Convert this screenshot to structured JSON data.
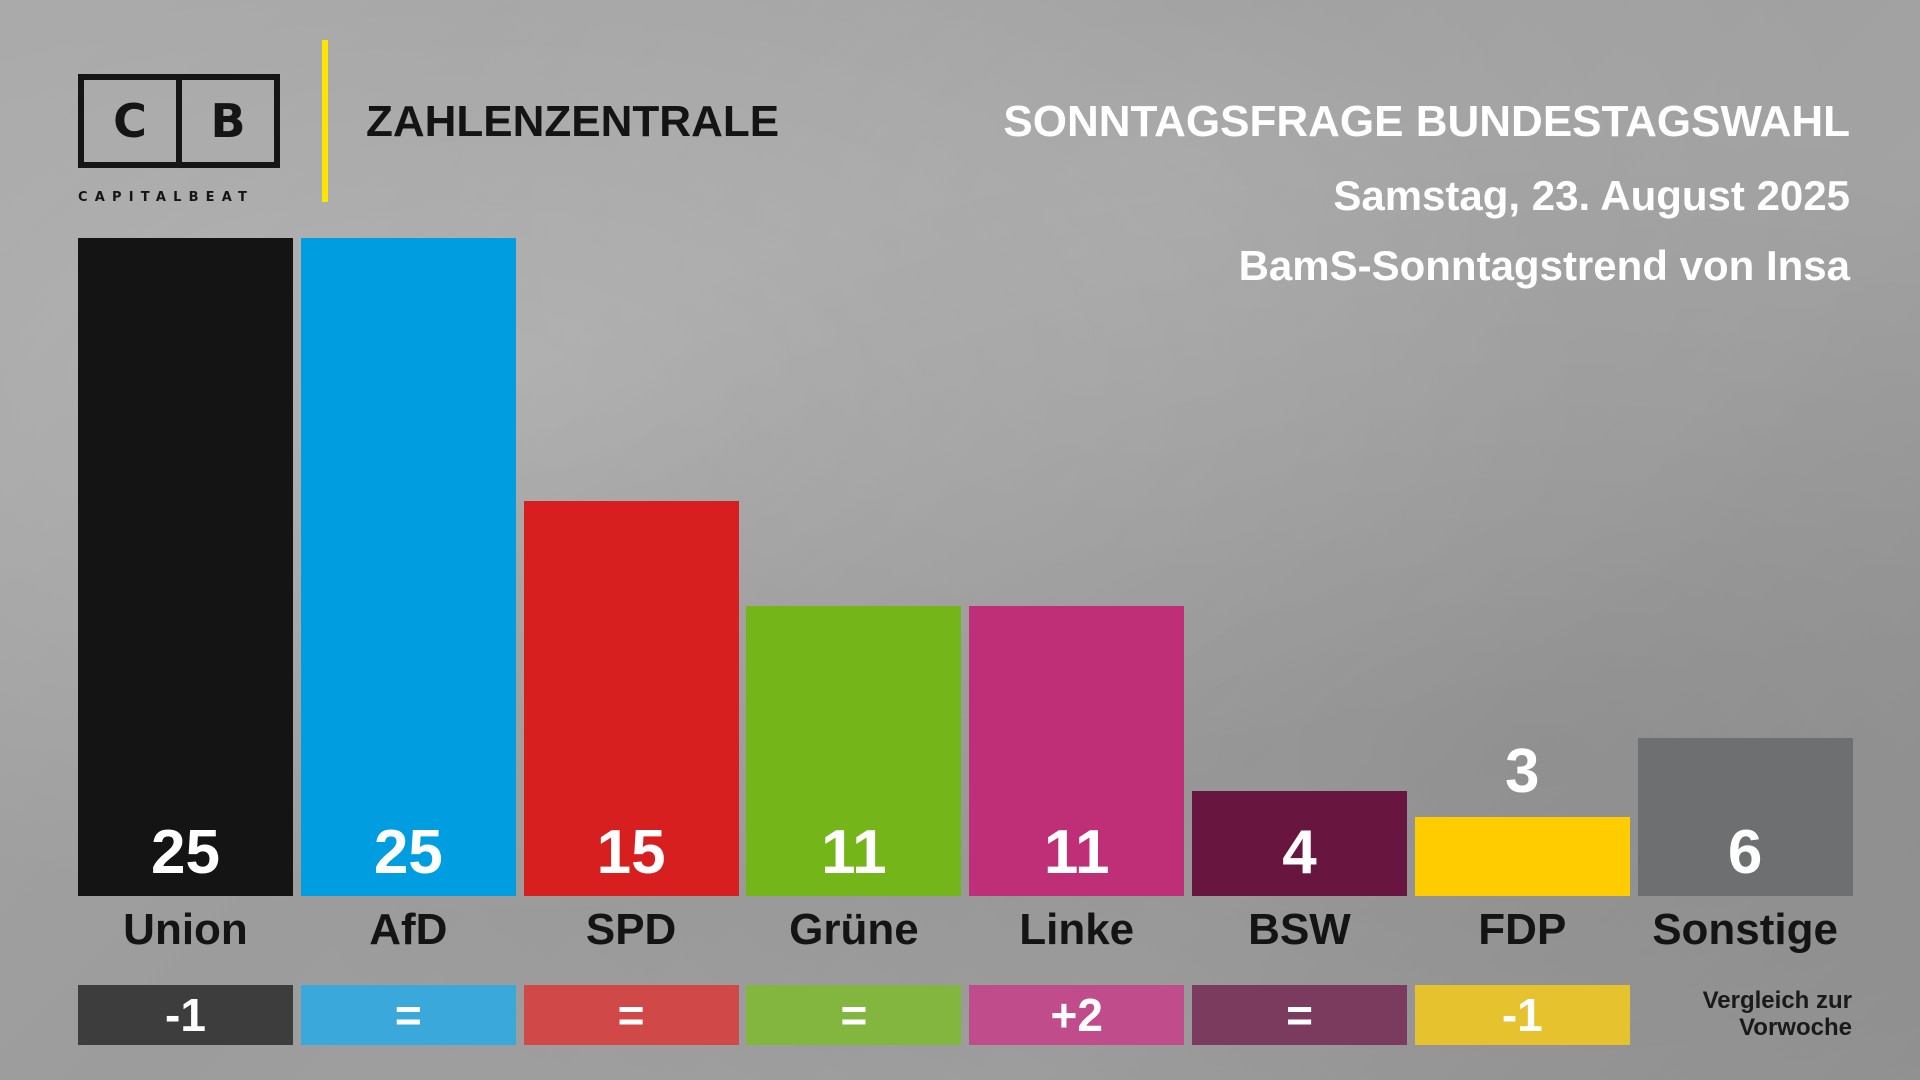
{
  "brand": {
    "logo_letter_left": "C",
    "logo_letter_right": "B",
    "logo_wordmark": "CAPITALBEAT",
    "section": "ZAHLENZENTRALE"
  },
  "header": {
    "title": "SONNTAGSFRAGE BUNDESTAGSWAHL",
    "date": "Samstag, 23. August 2025",
    "source": "BamS-Sonntagstrend von Insa"
  },
  "comparison_note": "Vergleich zur Vorwoche",
  "colors": {
    "Union": "#141414",
    "AfD": "#009ee0",
    "SPD": "#d71f1f",
    "Grüne": "#74b51a",
    "Linke": "#be2f78",
    "BSW": "#681640",
    "FDP": "#ffcc00",
    "Sonstige": "#6e6f71",
    "accent_divider": "#ffe500"
  },
  "delta_colors": {
    "Union": "#3d3d3d",
    "AfD": "#3ba8dc",
    "SPD": "#d04848",
    "Grüne": "#83b63f",
    "Linke": "#c04c8c",
    "BSW": "#7b3b5e",
    "FDP": "#e6c22e"
  },
  "chart_data": {
    "type": "bar",
    "categories": [
      "Union",
      "AfD",
      "SPD",
      "Grüne",
      "Linke",
      "BSW",
      "FDP",
      "Sonstige"
    ],
    "values": [
      25,
      25,
      15,
      11,
      11,
      4,
      3,
      6
    ],
    "value_labels": [
      "25",
      "25",
      "15",
      "11",
      "11",
      "4",
      "3",
      "6"
    ],
    "changes": [
      "-1",
      "=",
      "=",
      "=",
      "+2",
      "=",
      "-1",
      ""
    ],
    "title": "SONNTAGSFRAGE BUNDESTAGSWAHL",
    "xlabel": "",
    "ylabel": "",
    "ylim": [
      0,
      25
    ],
    "grid": false,
    "legend": "none"
  }
}
